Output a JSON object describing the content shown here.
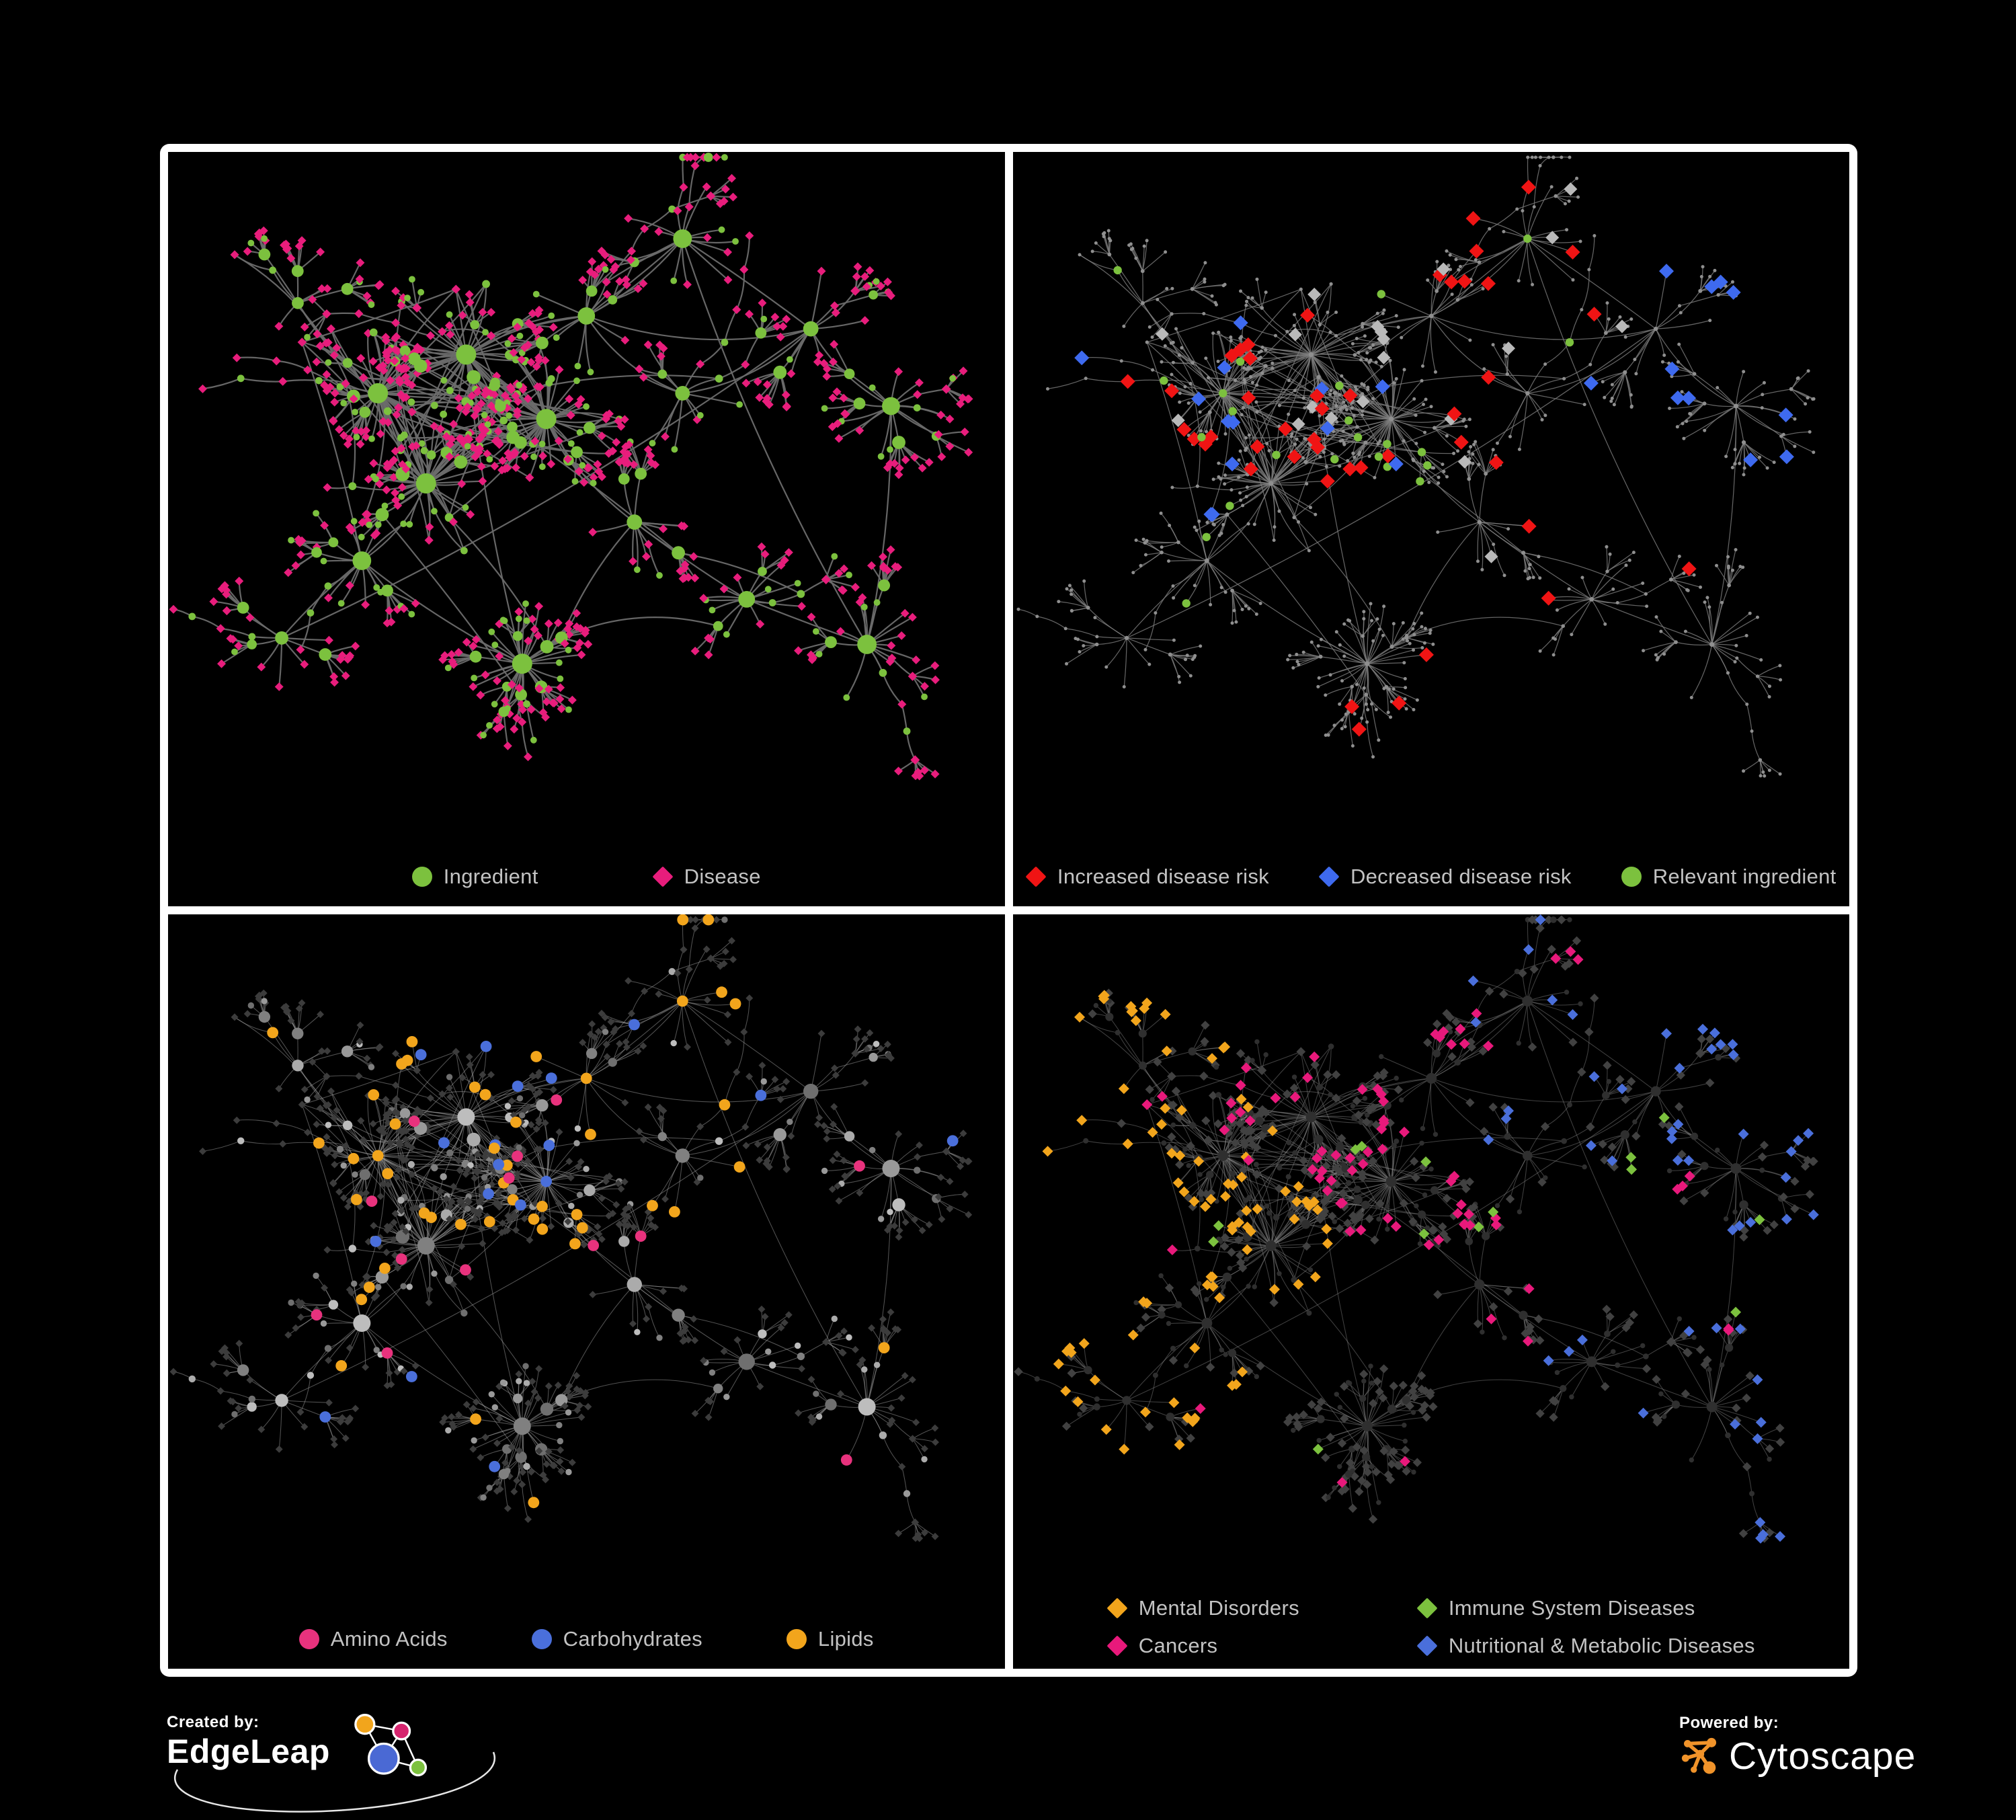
{
  "page": {
    "background": "#000000",
    "frame_color": "#ffffff",
    "legend_text_color": "#c3c3c3"
  },
  "panels": [
    {
      "id": "ingredient-disease",
      "legend": [
        {
          "label": "Ingredient",
          "shape": "circle",
          "color": "#7CC13E"
        },
        {
          "label": "Disease",
          "shape": "diamond",
          "color": "#E81D7C"
        }
      ],
      "style": {
        "edge": {
          "color": "#6B6B6B",
          "width": 2.2,
          "opacity": 0.95
        },
        "ingredient": {
          "shape": "circle",
          "color": "#7CC13E",
          "size": 4.4,
          "sizeDeg": 0.5,
          "sizeMax": 15
        },
        "disease": {
          "shape": "diamond",
          "color": "#E81D7C",
          "size": 6.4,
          "sizeDeg": 0.08,
          "sizeMax": 8.5
        },
        "overlays": []
      }
    },
    {
      "id": "disease-risk",
      "legend": [
        {
          "label": "Increased disease risk",
          "shape": "diamond",
          "color": "#F01414"
        },
        {
          "label": "Decreased disease risk",
          "shape": "diamond",
          "color": "#3E6AEF"
        },
        {
          "label": "Relevant ingredient",
          "shape": "circle",
          "color": "#7CC13E"
        }
      ],
      "style": {
        "edge": {
          "color": "#7D7D7D",
          "width": 1.25,
          "opacity": 0.8
        },
        "ingredient": {
          "shape": "circle",
          "color": "#8F8F8F",
          "size": 2.4,
          "sizeDeg": 0.06,
          "sizeMax": 3.6
        },
        "disease": {
          "shape": "circle",
          "color": "#8F8F8F",
          "size": 2.4,
          "sizeDeg": 0.06,
          "sizeMax": 3.6
        },
        "overlays": [
          {
            "target": "disease",
            "region": [
              0.16,
              0.72,
              0.1,
              0.62
            ],
            "rv": [
              0,
              0.1
            ],
            "shape": "diamond",
            "color": "#F01414",
            "size": 11
          },
          {
            "target": "disease",
            "region": [
              0.16,
              0.48,
              0.1,
              0.62
            ],
            "rv": [
              0.1,
              0.16
            ],
            "shape": "diamond",
            "color": "#3E6AEF",
            "size": 11
          },
          {
            "target": "disease",
            "region": [
              0.75,
              1,
              0,
              0.5
            ],
            "rv": [
              0,
              0.08
            ],
            "shape": "diamond",
            "color": "#3E6AEF",
            "size": 11
          },
          {
            "target": "disease",
            "region": [
              0.16,
              0.72,
              0.1,
              0.62
            ],
            "rv": [
              0.16,
              0.195
            ],
            "shape": "diamond",
            "color": "#B9B9B9",
            "size": 10
          },
          {
            "target": "disease",
            "region": [
              0.3,
              0.85,
              0.62,
              1
            ],
            "rv": [
              0,
              0.05
            ],
            "shape": "diamond",
            "color": "#F01414",
            "size": 11
          },
          {
            "target": "ingredient",
            "region": [
              0.12,
              0.78,
              0.08,
              0.66
            ],
            "rv": [
              0,
              0.11
            ],
            "shape": "circle",
            "color": "#7CC13E",
            "size": 6.2
          }
        ]
      }
    },
    {
      "id": "macronutrients",
      "legend": [
        {
          "label": "Amino Acids",
          "shape": "circle",
          "color": "#E8327D"
        },
        {
          "label": "Carbohydrates",
          "shape": "circle",
          "color": "#4A6FDB"
        },
        {
          "label": "Lipids",
          "shape": "circle",
          "color": "#F2A51C"
        }
      ],
      "style": {
        "edge": {
          "color": "#A3A3A3",
          "width": 1.05,
          "opacity": 0.5
        },
        "ingredient": {
          "shape": "circle",
          "palette": [
            "#999999",
            "#ABABAB",
            "#808080",
            "#BDBDBD",
            "#6F6F6F"
          ],
          "size": 4.2,
          "sizeDeg": 0.5,
          "sizeMax": 13
        },
        "disease": {
          "shape": "diamond",
          "color": "#3C3C3C",
          "size": 5.4,
          "sizeDeg": 0.06,
          "sizeMax": 7
        },
        "overlays": [
          {
            "target": "ingredient",
            "region": [
              0.22,
              0.64,
              0.06,
              0.52
            ],
            "rv": [
              0,
              0.32
            ],
            "shape": "circle",
            "color": "#F2A51C",
            "size": 8.4
          },
          {
            "target": "ingredient",
            "rv": [
              0,
              0.085
            ],
            "shape": "circle",
            "color": "#F2A51C",
            "size": 8.4
          },
          {
            "target": "ingredient",
            "rv": [
              0.32,
              0.4
            ],
            "shape": "circle",
            "color": "#E8327D",
            "size": 8.4
          },
          {
            "target": "ingredient",
            "region": [
              0.25,
              0.6,
              0.06,
              0.5
            ],
            "rv": [
              0.4,
              0.52
            ],
            "shape": "circle",
            "color": "#4A6FDB",
            "size": 8.4
          },
          {
            "target": "ingredient",
            "rv": [
              0.4,
              0.425
            ],
            "shape": "circle",
            "color": "#4A6FDB",
            "size": 8.4
          }
        ]
      }
    },
    {
      "id": "disease-categories",
      "legend": [
        {
          "label": "Mental Disorders",
          "shape": "diamond",
          "color": "#F2A51C"
        },
        {
          "label": "Immune System Diseases",
          "shape": "diamond",
          "color": "#7CC13E"
        },
        {
          "label": "Cancers",
          "shape": "diamond",
          "color": "#E8197B"
        },
        {
          "label": "Nutritional & Metabolic Diseases",
          "shape": "diamond",
          "color": "#4A6FDB"
        }
      ],
      "style": {
        "edge": {
          "color": "#8F8F8F",
          "width": 1.05,
          "opacity": 0.45
        },
        "ingredient": {
          "shape": "circle",
          "color": "#2F2F2F",
          "size": 3.4,
          "sizeDeg": 0.3,
          "sizeMax": 8
        },
        "disease": {
          "shape": "diamond",
          "color": "#414141",
          "size": 6.6,
          "sizeDeg": 0.06,
          "sizeMax": 8.5
        },
        "overlays": [
          {
            "target": "disease",
            "region": [
              0,
              0.34,
              0.15,
              0.75
            ],
            "rv": [
              0,
              0.5
            ],
            "shape": "diamond",
            "color": "#F2A51C",
            "size": 8
          },
          {
            "target": "disease",
            "region": [
              0.34,
              0.62,
              0.2,
              0.75
            ],
            "rv": [
              0,
              0.26
            ],
            "shape": "diamond",
            "color": "#E8197B",
            "size": 8
          },
          {
            "target": "disease",
            "region": [
              0.55,
              1,
              0,
              1
            ],
            "rv": [
              0,
              0.26
            ],
            "shape": "diamond",
            "color": "#4A6FDB",
            "size": 8
          },
          {
            "target": "disease",
            "region": [
              0,
              1,
              0,
              0.2
            ],
            "rv": [
              0,
              0.18
            ],
            "shape": "diamond",
            "color": "#4A6FDB",
            "size": 8
          },
          {
            "target": "disease",
            "rv": [
              0.5,
              0.52
            ],
            "shape": "diamond",
            "color": "#7CC13E",
            "size": 8
          },
          {
            "target": "disease",
            "rv": [
              0.52,
              0.55
            ],
            "shape": "diamond",
            "color": "#E8197B",
            "size": 8
          }
        ]
      }
    }
  ],
  "footer": {
    "created_by": {
      "label": "Created by:",
      "brand": "EdgeLeap"
    },
    "powered_by": {
      "label": "Powered by:",
      "brand": "Cytoscape"
    },
    "edgeleap_colors": {
      "orange": "#F2A51C",
      "magenta": "#D6246E",
      "blue": "#4A69D4",
      "green": "#7CC13E",
      "line": "#FFFFFF"
    },
    "cytoscape_color": "#F0932A"
  },
  "network": {
    "seed": 7,
    "hubs": [
      [
        0.24,
        0.36,
        1
      ],
      [
        0.35,
        0.3,
        1
      ],
      [
        0.3,
        0.5,
        1
      ],
      [
        0.45,
        0.4,
        1
      ],
      [
        0.22,
        0.62,
        0
      ],
      [
        0.5,
        0.24,
        0
      ],
      [
        0.62,
        0.36,
        0
      ],
      [
        0.56,
        0.56,
        0
      ],
      [
        0.42,
        0.78,
        1
      ],
      [
        0.7,
        0.68,
        0
      ],
      [
        0.78,
        0.26,
        0
      ],
      [
        0.88,
        0.38,
        0
      ],
      [
        0.14,
        0.22,
        0
      ],
      [
        0.12,
        0.74,
        0
      ],
      [
        0.62,
        0.12,
        0
      ],
      [
        0.85,
        0.75,
        0
      ]
    ],
    "extra_hub_links": 9,
    "core_hub_count": 4,
    "core_mid_per_hub": 12,
    "child_min": 7,
    "child_max": 15,
    "super_child_min": 24,
    "super_child_max": 36,
    "subhub_prob": 0.2,
    "sub_child_min": 4,
    "sub_child_max": 11,
    "chain_max_per_hub": 2,
    "chain_len_min": 2,
    "chain_len_max": 5,
    "burst_prob": 0.6,
    "burst_min": 4,
    "burst_max": 11,
    "cross_edges": 30,
    "ingredient_child_prob": 0.34,
    "leaf_ingredient_prob": 0.12
  }
}
